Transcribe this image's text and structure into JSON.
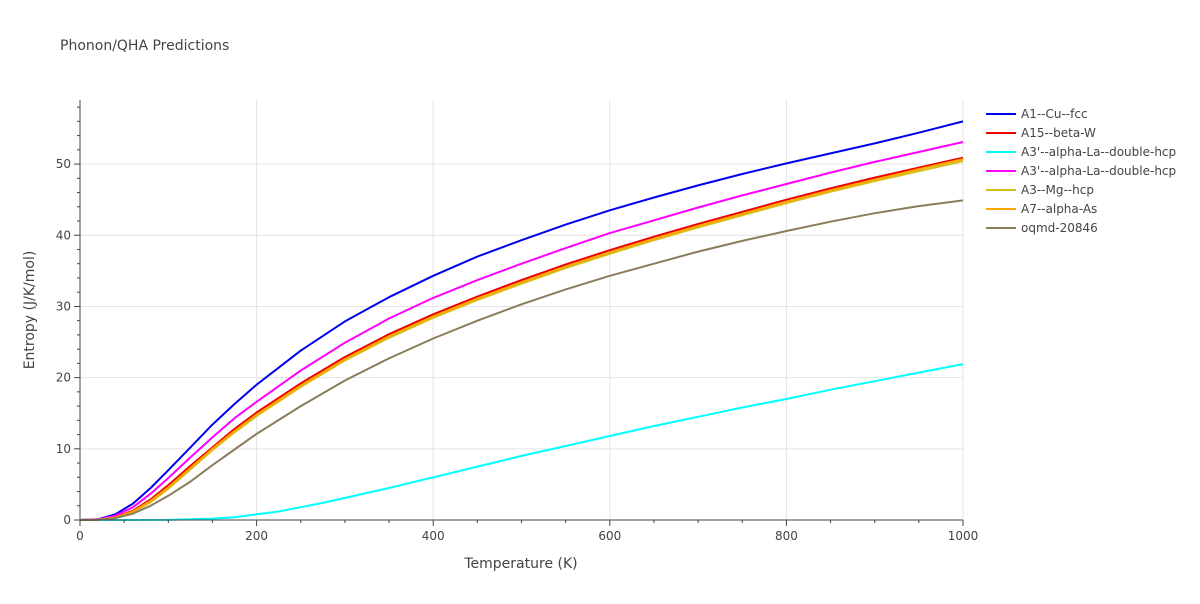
{
  "chart_data": {
    "type": "line",
    "title": "Phonon/QHA Predictions",
    "xlabel": "Temperature (K)",
    "ylabel": "Entropy (J/K/mol)",
    "xlim": [
      0,
      1000
    ],
    "ylim": [
      0,
      59
    ],
    "xticks": [
      0,
      200,
      400,
      600,
      800,
      1000
    ],
    "yticks": [
      0,
      10,
      20,
      30,
      40,
      50
    ],
    "grid": true,
    "legend_position": "top-right",
    "series": [
      {
        "name": "A1--Cu--fcc",
        "color": "#0000ee",
        "x": [
          0,
          20,
          40,
          60,
          80,
          100,
          125,
          150,
          175,
          200,
          250,
          300,
          350,
          400,
          450,
          500,
          550,
          600,
          650,
          700,
          750,
          800,
          850,
          900,
          950,
          1000
        ],
        "y": [
          0,
          0.1,
          0.8,
          2.3,
          4.5,
          7.0,
          10.2,
          13.4,
          16.3,
          19.0,
          23.8,
          27.9,
          31.3,
          34.3,
          37.0,
          39.3,
          41.5,
          43.5,
          45.3,
          47.0,
          48.6,
          50.1,
          51.5,
          52.9,
          54.4,
          56.0
        ]
      },
      {
        "name": "A15--beta-W",
        "color": "#ee0000",
        "x": [
          0,
          20,
          40,
          60,
          80,
          100,
          125,
          150,
          175,
          200,
          250,
          300,
          350,
          400,
          450,
          500,
          550,
          600,
          650,
          700,
          750,
          800,
          850,
          900,
          950,
          1000
        ],
        "y": [
          0,
          0.05,
          0.4,
          1.3,
          2.9,
          4.9,
          7.6,
          10.2,
          12.8,
          15.1,
          19.2,
          22.9,
          26.1,
          28.9,
          31.4,
          33.7,
          35.9,
          37.9,
          39.8,
          41.6,
          43.3,
          45.0,
          46.6,
          48.1,
          49.5,
          50.9
        ]
      },
      {
        "name": "A3'--alpha-La--double-hcp",
        "color": "#00ffff",
        "x": [
          0,
          50,
          100,
          150,
          175,
          200,
          225,
          250,
          275,
          300,
          350,
          400,
          450,
          500,
          550,
          600,
          650,
          700,
          750,
          800,
          850,
          900,
          950,
          1000
        ],
        "y": [
          0,
          0,
          0.02,
          0.2,
          0.4,
          0.8,
          1.2,
          1.8,
          2.4,
          3.1,
          4.5,
          6.0,
          7.5,
          9.0,
          10.4,
          11.8,
          13.2,
          14.5,
          15.8,
          17.0,
          18.3,
          19.5,
          20.7,
          21.9
        ]
      },
      {
        "name": "A3'--alpha-La--double-hcp",
        "color": "#ff00ff",
        "x": [
          0,
          20,
          40,
          60,
          80,
          100,
          125,
          150,
          175,
          200,
          250,
          300,
          350,
          400,
          450,
          500,
          550,
          600,
          650,
          700,
          750,
          800,
          850,
          900,
          950,
          1000
        ],
        "y": [
          0,
          0.07,
          0.6,
          1.8,
          3.7,
          5.9,
          8.8,
          11.6,
          14.3,
          16.6,
          21.0,
          24.9,
          28.3,
          31.2,
          33.7,
          36.0,
          38.2,
          40.3,
          42.1,
          43.9,
          45.6,
          47.2,
          48.8,
          50.3,
          51.7,
          53.1
        ]
      },
      {
        "name": "A3--Mg--hcp",
        "color": "#d4bf1f",
        "x": [
          0,
          20,
          40,
          60,
          80,
          100,
          125,
          150,
          175,
          200,
          250,
          300,
          350,
          400,
          450,
          500,
          550,
          600,
          650,
          700,
          750,
          800,
          850,
          900,
          950,
          1000
        ],
        "y": [
          0,
          0.04,
          0.3,
          1.1,
          2.5,
          4.4,
          7.1,
          9.8,
          12.3,
          14.6,
          18.7,
          22.4,
          25.6,
          28.4,
          30.9,
          33.2,
          35.4,
          37.4,
          39.3,
          41.1,
          42.8,
          44.5,
          46.1,
          47.6,
          49.0,
          50.4
        ]
      },
      {
        "name": "A7--alpha-As",
        "color": "#ffa500",
        "x": [
          0,
          20,
          40,
          60,
          80,
          100,
          125,
          150,
          175,
          200,
          250,
          300,
          350,
          400,
          450,
          500,
          550,
          600,
          650,
          700,
          750,
          800,
          850,
          900,
          950,
          1000
        ],
        "y": [
          0,
          0.04,
          0.35,
          1.2,
          2.7,
          4.6,
          7.3,
          10.0,
          12.5,
          14.8,
          18.9,
          22.6,
          25.8,
          28.6,
          31.1,
          33.4,
          35.6,
          37.6,
          39.5,
          41.3,
          43.0,
          44.7,
          46.3,
          47.8,
          49.3,
          50.7
        ]
      },
      {
        "name": "oqmd-20846",
        "color": "#8b7d5b",
        "x": [
          0,
          20,
          40,
          60,
          80,
          100,
          125,
          150,
          175,
          200,
          250,
          300,
          350,
          400,
          450,
          500,
          550,
          600,
          650,
          700,
          750,
          800,
          850,
          900,
          950,
          1000
        ],
        "y": [
          0,
          0.02,
          0.25,
          0.9,
          2.0,
          3.4,
          5.4,
          7.7,
          9.9,
          12.1,
          16.0,
          19.6,
          22.7,
          25.5,
          28.0,
          30.3,
          32.4,
          34.3,
          36.0,
          37.7,
          39.2,
          40.6,
          41.9,
          43.1,
          44.1,
          44.9
        ]
      }
    ]
  }
}
